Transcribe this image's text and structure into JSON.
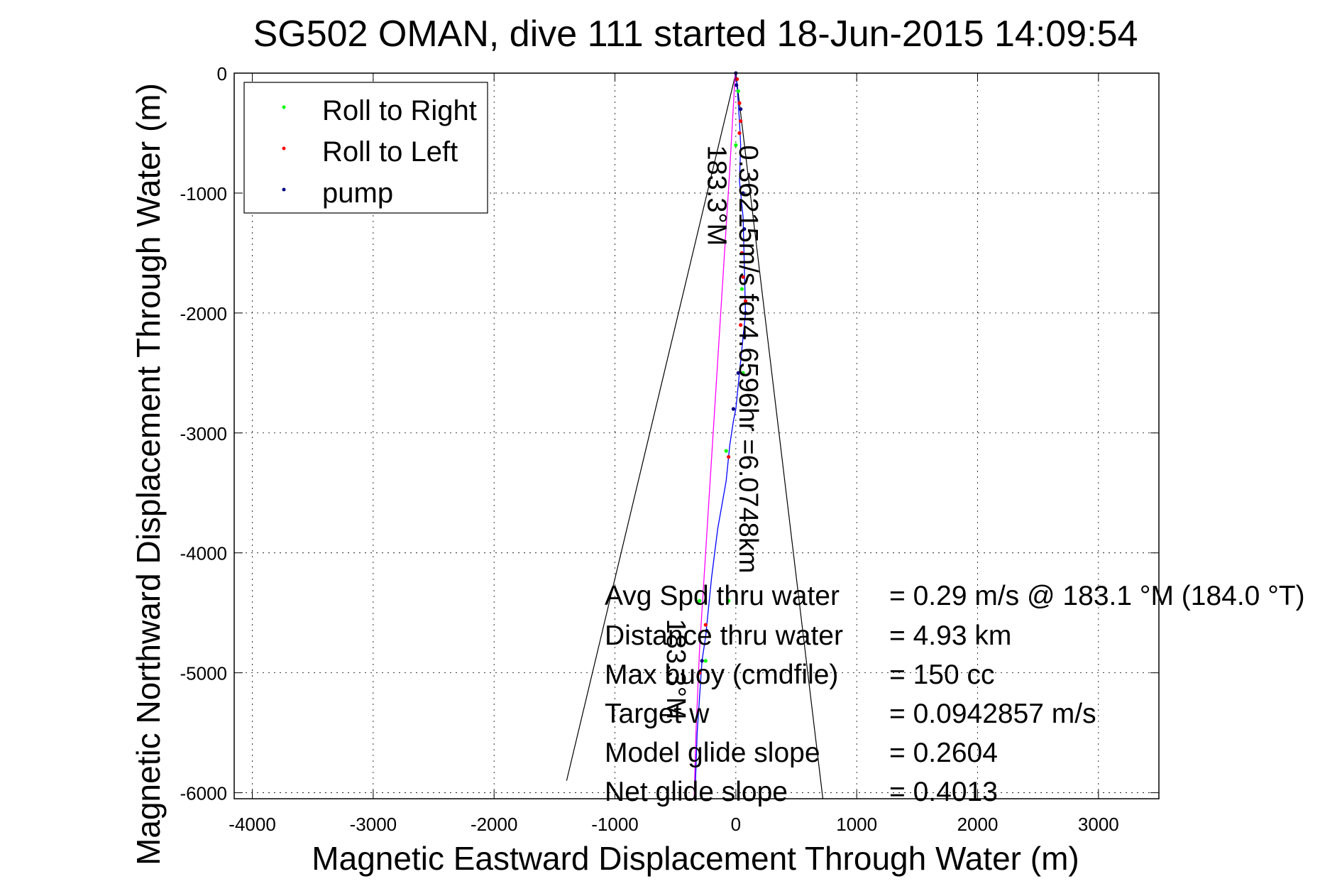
{
  "chart_data": {
    "type": "scatter",
    "title": "SG502 OMAN, dive 111 started 18-Jun-2015 14:09:54",
    "xlabel": "Magnetic Eastward Displacement Through Water (m)",
    "ylabel": "Magnetic Northward Displacement Through Water (m)",
    "xlim": [
      -4150,
      3500
    ],
    "ylim": [
      -6050,
      0
    ],
    "xticks": [
      -4000,
      -3000,
      -2000,
      -1000,
      0,
      1000,
      2000,
      3000
    ],
    "yticks": [
      0,
      -1000,
      -2000,
      -3000,
      -4000,
      -5000,
      -6000
    ],
    "xtick_labels": [
      "-4000",
      "-3000",
      "-2000",
      "-1000",
      "0",
      "1000",
      "2000",
      "3000"
    ],
    "ytick_labels": [
      "0",
      "-1000",
      "-2000",
      "-3000",
      "-4000",
      "-5000",
      "-6000"
    ],
    "grid": true,
    "legend": {
      "placement": "top-left",
      "entries": [
        {
          "label": "Roll to Right",
          "color": "#00ff00"
        },
        {
          "label": "Roll to Left",
          "color": "#ff0000"
        },
        {
          "label": "pump",
          "color": "#000080"
        }
      ]
    },
    "series": [
      {
        "name": "Roll to Right",
        "color": "#00ff00",
        "x": [
          20,
          0,
          60,
          50,
          -80,
          -60,
          -300,
          -250
        ],
        "y": [
          -150,
          -600,
          -2500,
          -1800,
          -3150,
          -4400,
          -4400,
          -4900
        ]
      },
      {
        "name": "Roll to Left",
        "color": "#ff0000",
        "x": [
          10,
          30,
          40,
          30,
          50,
          60,
          80,
          40,
          -60,
          -250,
          -300
        ],
        "y": [
          -50,
          -250,
          -400,
          -500,
          -1500,
          -1700,
          -1900,
          -2100,
          -3200,
          -4600,
          -5000
        ]
      },
      {
        "name": "pump",
        "color": "#000080",
        "x": [
          0,
          5,
          40,
          60,
          70,
          80,
          70,
          20,
          -20,
          -240,
          -280
        ],
        "y": [
          0,
          -100,
          -300,
          -1000,
          -1300,
          -2000,
          -2200,
          -2500,
          -2800,
          -4650,
          -4900
        ]
      }
    ],
    "track": {
      "color": "#0000ff",
      "x": [
        0,
        10,
        20,
        30,
        40,
        30,
        60,
        70,
        80,
        60,
        40,
        10,
        0,
        -20,
        -50,
        -80,
        -150,
        -200,
        -230,
        -250,
        -280,
        -300,
        -320,
        -330,
        -340
      ],
      "y": [
        0,
        -100,
        -250,
        -400,
        -600,
        -900,
        -1200,
        -1600,
        -2000,
        -2200,
        -2400,
        -2700,
        -2800,
        -2900,
        -3100,
        -3400,
        -3800,
        -4200,
        -4500,
        -4700,
        -4900,
        -5200,
        -5500,
        -5800,
        -6050
      ]
    },
    "heading_track": {
      "color": "#ff00ff",
      "x": [
        -5,
        -50,
        -100,
        -150,
        -200,
        -250,
        -300,
        -330,
        -345
      ],
      "y": [
        0,
        -800,
        -1600,
        -2400,
        -3200,
        -4000,
        -4800,
        -5500,
        -6050
      ]
    },
    "cone_lines": [
      {
        "x": [
          0,
          -1400
        ],
        "y": [
          0,
          -5900
        ],
        "color": "#000000"
      },
      {
        "x": [
          0,
          720
        ],
        "y": [
          0,
          -6050
        ],
        "color": "#000000"
      }
    ],
    "annotations": [
      {
        "text": "0.36215m/s for4.6596hr =6.0748km",
        "x": 30,
        "y": -600,
        "rotation": 90
      },
      {
        "text": "183.3°M",
        "x": -230,
        "y": -600,
        "rotation": 90
      },
      {
        "text": "183.3°M",
        "x": -570,
        "y": -4550,
        "rotation": 90
      }
    ],
    "stats": [
      {
        "label": "Avg Spd thru water",
        "value": "=  0.29 m/s @ 183.1 °M (184.0 °T)"
      },
      {
        "label": "Distance thru water",
        "value": "=  4.93 km"
      },
      {
        "label": "Max buoy (cmdfile)",
        "value": "= 150 cc"
      },
      {
        "label": "Target w",
        "value": "= 0.0942857 m/s"
      },
      {
        "label": "Model glide slope",
        "value": "= 0.2604"
      },
      {
        "label": "Net glide slope",
        "value": "= 0.4013"
      }
    ]
  }
}
